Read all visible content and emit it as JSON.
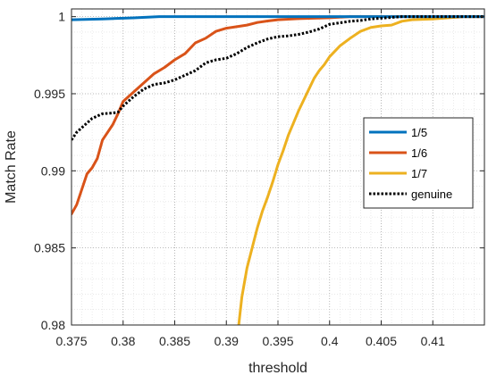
{
  "chart_data": {
    "type": "line",
    "title": "",
    "xlabel": "threshold",
    "ylabel": "Match Rate",
    "xlim": [
      0.375,
      0.415
    ],
    "ylim": [
      0.98,
      1.0005
    ],
    "xticks": [
      0.375,
      0.38,
      0.385,
      0.39,
      0.395,
      0.4,
      0.405,
      0.41
    ],
    "xtick_labels": [
      "0.375",
      "0.38",
      "0.385",
      "0.39",
      "0.395",
      "0.4",
      "0.405",
      "0.41"
    ],
    "yticks": [
      0.98,
      0.985,
      0.99,
      0.995,
      1.0
    ],
    "ytick_labels": [
      "0.98",
      "0.985",
      "0.99",
      "0.995",
      "1"
    ],
    "grid": "dotted",
    "legend_position": "right",
    "series": [
      {
        "name": "1/5",
        "color": "#0072BD",
        "style": "solid",
        "points": [
          [
            0.375,
            0.9998
          ],
          [
            0.378,
            0.99985
          ],
          [
            0.381,
            0.99992
          ],
          [
            0.3835,
            1.0
          ],
          [
            0.415,
            1.0
          ]
        ]
      },
      {
        "name": "1/6",
        "color": "#D95319",
        "style": "solid",
        "points": [
          [
            0.375,
            0.9872
          ],
          [
            0.3755,
            0.9878
          ],
          [
            0.376,
            0.9888
          ],
          [
            0.3765,
            0.9898
          ],
          [
            0.377,
            0.9902
          ],
          [
            0.3775,
            0.9908
          ],
          [
            0.378,
            0.992
          ],
          [
            0.3785,
            0.9925
          ],
          [
            0.379,
            0.993
          ],
          [
            0.3795,
            0.9937
          ],
          [
            0.38,
            0.9945
          ],
          [
            0.381,
            0.9951
          ],
          [
            0.382,
            0.9957
          ],
          [
            0.383,
            0.9963
          ],
          [
            0.384,
            0.9967
          ],
          [
            0.385,
            0.9972
          ],
          [
            0.386,
            0.9976
          ],
          [
            0.387,
            0.9983
          ],
          [
            0.388,
            0.9986
          ],
          [
            0.389,
            0.99905
          ],
          [
            0.39,
            0.99925
          ],
          [
            0.391,
            0.99935
          ],
          [
            0.392,
            0.99945
          ],
          [
            0.393,
            0.99962
          ],
          [
            0.394,
            0.99972
          ],
          [
            0.395,
            0.9998
          ],
          [
            0.397,
            0.99987
          ],
          [
            0.4,
            0.99993
          ],
          [
            0.402,
            1.0
          ],
          [
            0.415,
            1.0
          ]
        ]
      },
      {
        "name": "1/7",
        "color": "#EDB120",
        "style": "solid",
        "points": [
          [
            0.3912,
            0.98
          ],
          [
            0.3915,
            0.9818
          ],
          [
            0.392,
            0.9837
          ],
          [
            0.3925,
            0.985
          ],
          [
            0.393,
            0.9863
          ],
          [
            0.3935,
            0.9874
          ],
          [
            0.394,
            0.9883
          ],
          [
            0.3945,
            0.9893
          ],
          [
            0.395,
            0.9904
          ],
          [
            0.3955,
            0.9913
          ],
          [
            0.396,
            0.9923
          ],
          [
            0.3965,
            0.9931
          ],
          [
            0.397,
            0.9939
          ],
          [
            0.3975,
            0.9946
          ],
          [
            0.398,
            0.9953
          ],
          [
            0.3985,
            0.996
          ],
          [
            0.399,
            0.9965
          ],
          [
            0.3995,
            0.9969
          ],
          [
            0.4,
            0.9974
          ],
          [
            0.401,
            0.9981
          ],
          [
            0.402,
            0.9986
          ],
          [
            0.403,
            0.99905
          ],
          [
            0.404,
            0.9993
          ],
          [
            0.405,
            0.9994
          ],
          [
            0.406,
            0.99945
          ],
          [
            0.407,
            0.9997
          ],
          [
            0.408,
            0.9998
          ],
          [
            0.41,
            0.99985
          ],
          [
            0.412,
            0.99995
          ],
          [
            0.413,
            1.0
          ],
          [
            0.415,
            1.0
          ]
        ]
      },
      {
        "name": "genuine",
        "color": "#000000",
        "style": "dotted",
        "points": [
          [
            0.375,
            0.992
          ],
          [
            0.3755,
            0.9925
          ],
          [
            0.376,
            0.9928
          ],
          [
            0.3765,
            0.9931
          ],
          [
            0.377,
            0.9934
          ],
          [
            0.378,
            0.9937
          ],
          [
            0.379,
            0.99375
          ],
          [
            0.3795,
            0.9938
          ],
          [
            0.38,
            0.9942
          ],
          [
            0.381,
            0.9948
          ],
          [
            0.382,
            0.9953
          ],
          [
            0.383,
            0.9956
          ],
          [
            0.384,
            0.9957
          ],
          [
            0.385,
            0.9959
          ],
          [
            0.386,
            0.9962
          ],
          [
            0.387,
            0.9965
          ],
          [
            0.388,
            0.997
          ],
          [
            0.389,
            0.9972
          ],
          [
            0.39,
            0.9973
          ],
          [
            0.391,
            0.9976
          ],
          [
            0.392,
            0.998
          ],
          [
            0.393,
            0.9983
          ],
          [
            0.394,
            0.99855
          ],
          [
            0.395,
            0.9987
          ],
          [
            0.396,
            0.99875
          ],
          [
            0.397,
            0.99885
          ],
          [
            0.398,
            0.999
          ],
          [
            0.399,
            0.9992
          ],
          [
            0.4,
            0.9995
          ],
          [
            0.401,
            0.9996
          ],
          [
            0.402,
            0.9997
          ],
          [
            0.403,
            0.99975
          ],
          [
            0.404,
            0.99985
          ],
          [
            0.405,
            0.9999
          ],
          [
            0.406,
            0.99995
          ],
          [
            0.407,
            1.0
          ],
          [
            0.415,
            1.0
          ]
        ]
      }
    ]
  }
}
